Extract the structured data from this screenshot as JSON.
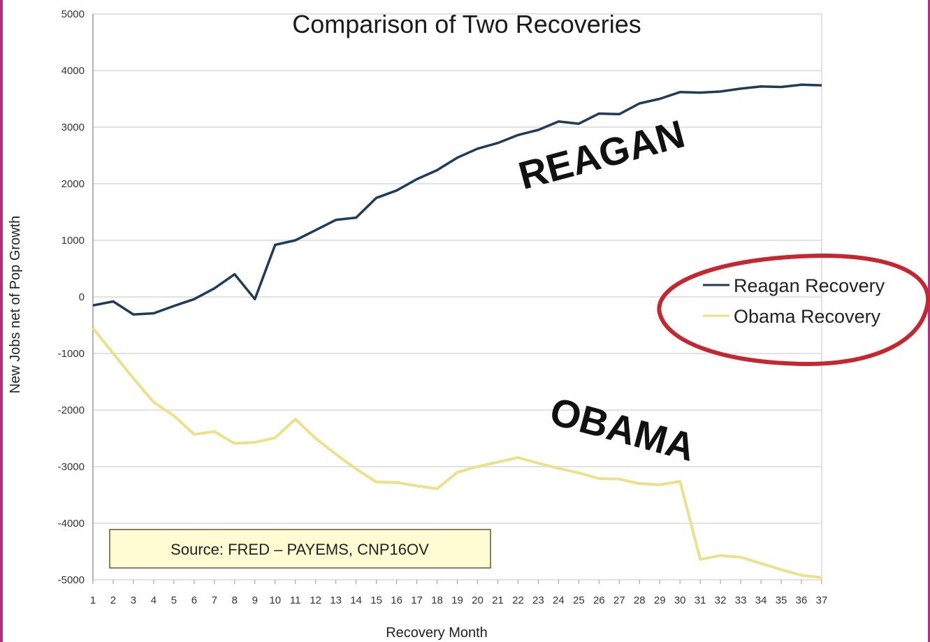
{
  "chart_data": {
    "type": "line",
    "title": "Comparison of Two Recoveries",
    "xlabel": "Recovery Month",
    "ylabel": "New Jobs net of Pop Growth",
    "ylim": [
      -5000,
      5000
    ],
    "yticks": [
      5000,
      4000,
      3000,
      2000,
      1000,
      0,
      -1000,
      -2000,
      -3000,
      -4000,
      -5000
    ],
    "x": [
      1,
      2,
      3,
      4,
      5,
      6,
      7,
      8,
      9,
      10,
      11,
      12,
      13,
      14,
      15,
      16,
      17,
      18,
      19,
      20,
      21,
      22,
      23,
      24,
      25,
      26,
      27,
      28,
      29,
      30,
      31,
      32,
      33,
      34,
      35,
      36,
      37
    ],
    "grid": true,
    "legend_position": "right",
    "series": [
      {
        "name": "Reagan Recovery",
        "color": "#1f3b57",
        "values": [
          -150,
          -80,
          -310,
          -290,
          -160,
          -40,
          150,
          400,
          -40,
          920,
          1000,
          1180,
          1360,
          1400,
          1750,
          1880,
          2080,
          2240,
          2460,
          2620,
          2720,
          2860,
          2950,
          3100,
          3060,
          3240,
          3230,
          3420,
          3500,
          3620,
          3610,
          3630,
          3680,
          3720,
          3710,
          3750,
          3740
        ]
      },
      {
        "name": "Obama Recovery",
        "color": "#ede08a",
        "values": [
          -550,
          -1000,
          -1440,
          -1860,
          -2100,
          -2430,
          -2380,
          -2590,
          -2570,
          -2490,
          -2160,
          -2500,
          -2780,
          -3040,
          -3270,
          -3280,
          -3340,
          -3390,
          -3100,
          -3000,
          -2920,
          -2840,
          -2940,
          -3030,
          -3110,
          -3210,
          -3220,
          -3300,
          -3320,
          -3260,
          -4640,
          -4570,
          -4600,
          -4710,
          -4820,
          -4920,
          -4960
        ]
      }
    ],
    "annotations": {
      "reagan_label": "REAGAN",
      "obama_label": "OBAMA",
      "source": "Source: FRED – PAYEMS, CNP16OV"
    },
    "colors": {
      "grid": "#d9d9d9",
      "axis": "#9a9a9a",
      "highlight_circle": "#c4272f",
      "source_box_fill": "#fffbd2",
      "source_box_border": "#5a5a3a",
      "frame": "#b0307a"
    }
  }
}
